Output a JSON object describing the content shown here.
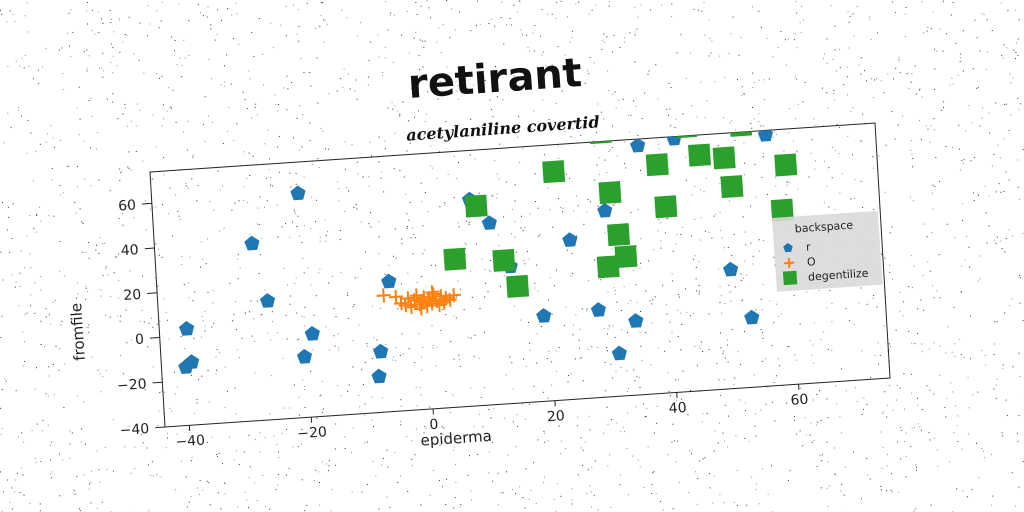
{
  "chart_data": {
    "type": "scatter",
    "title": "retirant",
    "subtitle": "acetylaniline covertid",
    "xlabel": "epiderma",
    "ylabel": "fromfile",
    "xlim": [
      -44,
      75
    ],
    "ylim": [
      -40,
      74
    ],
    "xticks": [
      -40,
      -20,
      0,
      20,
      40,
      60
    ],
    "yticks": [
      -40,
      -20,
      0,
      20,
      40,
      60
    ],
    "xtick_labels": [
      "−40",
      "−20",
      "0",
      "20",
      "40",
      "60"
    ],
    "ytick_labels": [
      "−40",
      "−20",
      "0",
      "20",
      "40",
      "60"
    ],
    "grid": false,
    "legend": {
      "title": "backspace",
      "position": "right"
    },
    "series": [
      {
        "name": "r",
        "marker": "pentagon",
        "color": "#1f77b4",
        "points": [
          [
            -39.5,
            3
          ],
          [
            -40,
            -14
          ],
          [
            -39,
            -12
          ],
          [
            -28,
            39
          ],
          [
            -26,
            13
          ],
          [
            -20,
            60
          ],
          [
            -20.5,
            -13
          ],
          [
            -19,
            -3
          ],
          [
            -8.5,
            -24
          ],
          [
            -8,
            -13
          ],
          [
            -6,
            18
          ],
          [
            8,
            52
          ],
          [
            11,
            41
          ],
          [
            14,
            21
          ],
          [
            19,
            -2
          ],
          [
            24,
            31
          ],
          [
            28,
            -1
          ],
          [
            30,
            43
          ],
          [
            31,
            -21
          ],
          [
            34,
            -7
          ],
          [
            36,
            71
          ],
          [
            42,
            73
          ],
          [
            50,
            13
          ],
          [
            53,
            -9
          ],
          [
            56,
            77
          ],
          [
            57,
            72
          ]
        ]
      },
      {
        "name": "O",
        "marker": "plus",
        "color": "#ff7f0e",
        "points": [
          [
            -7,
            12
          ],
          [
            -5,
            11
          ],
          [
            -4.2,
            8
          ],
          [
            -3.5,
            7
          ],
          [
            -3,
            10
          ],
          [
            -2.6,
            6
          ],
          [
            -2,
            9
          ],
          [
            -1.6,
            11
          ],
          [
            -1.2,
            7
          ],
          [
            -0.8,
            8
          ],
          [
            -0.4,
            10
          ],
          [
            0,
            6
          ],
          [
            0.4,
            9
          ],
          [
            0.8,
            7
          ],
          [
            1.2,
            11
          ],
          [
            1.6,
            8
          ],
          [
            2,
            6
          ],
          [
            2.4,
            10
          ],
          [
            2.8,
            7
          ],
          [
            3.2,
            9
          ],
          [
            3.8,
            8
          ],
          [
            4.5,
            10
          ],
          [
            -1,
            5
          ],
          [
            1,
            12
          ]
        ]
      },
      {
        "name": "degentilize",
        "marker": "square",
        "color": "#2ca02c",
        "points": [
          [
            5,
            26
          ],
          [
            9,
            49
          ],
          [
            13,
            24
          ],
          [
            15,
            12
          ],
          [
            22,
            62
          ],
          [
            30,
            18
          ],
          [
            30,
            78
          ],
          [
            31,
            51
          ],
          [
            32,
            32
          ],
          [
            33,
            22
          ],
          [
            39,
            62
          ],
          [
            40,
            43
          ],
          [
            44,
            78
          ],
          [
            46,
            65
          ],
          [
            50,
            63
          ],
          [
            51,
            50
          ],
          [
            53,
            77
          ],
          [
            59,
            38
          ],
          [
            60,
            58
          ],
          [
            66,
            79
          ],
          [
            68,
            80
          ],
          [
            72,
            81
          ]
        ]
      }
    ]
  }
}
